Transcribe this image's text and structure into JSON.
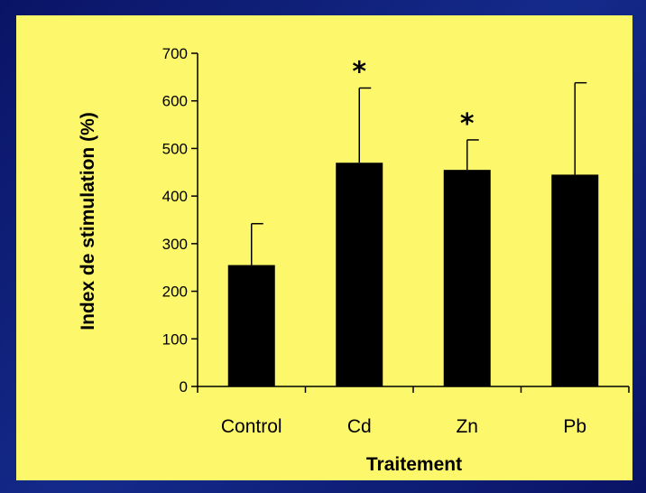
{
  "chart_data": {
    "type": "bar",
    "categories": [
      "Control",
      "Cd",
      "Zn",
      "Pb"
    ],
    "values": [
      255,
      470,
      455,
      445
    ],
    "error_upper": [
      342,
      627,
      518,
      638
    ],
    "significance": [
      "",
      "*",
      "*",
      ""
    ],
    "xlabel": "Traitement",
    "ylabel": "Index de stimulation (%)",
    "ylim": [
      0,
      700
    ],
    "yticks": [
      0,
      100,
      200,
      300,
      400,
      500,
      600,
      700
    ],
    "grid": false,
    "legend": "none",
    "colors": {
      "bar": "#000000",
      "background": "#fdf76b",
      "frame": "#0e1a70"
    }
  }
}
